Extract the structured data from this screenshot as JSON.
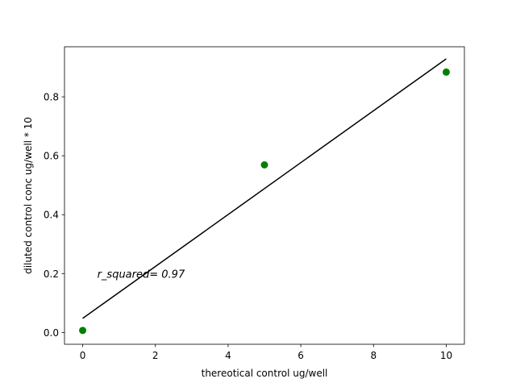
{
  "chart_data": {
    "type": "scatter",
    "title": "",
    "xlabel": "thereotical control ug/well",
    "ylabel": "diluted control conc ug/well * 10",
    "xlim": [
      -0.5,
      10.5
    ],
    "ylim": [
      -0.04,
      0.97
    ],
    "grid": false,
    "xticks": [
      0,
      2,
      4,
      6,
      8,
      10
    ],
    "xtick_labels": [
      "0",
      "2",
      "4",
      "6",
      "8",
      "10"
    ],
    "yticks": [
      0.0,
      0.2,
      0.4,
      0.6,
      0.8
    ],
    "ytick_labels": [
      "0.0",
      "0.2",
      "0.4",
      "0.6",
      "0.8"
    ],
    "series": [
      {
        "kind": "scatter",
        "color": "#008000",
        "x": [
          0,
          5,
          10
        ],
        "y": [
          0.007,
          0.569,
          0.884
        ]
      },
      {
        "kind": "line",
        "color": "#000000",
        "x": [
          0,
          10
        ],
        "y": [
          0.048,
          0.929
        ]
      }
    ],
    "annotations": [
      {
        "text": "r_squared= 0.97",
        "x": 0.4,
        "y": 0.2
      }
    ]
  }
}
